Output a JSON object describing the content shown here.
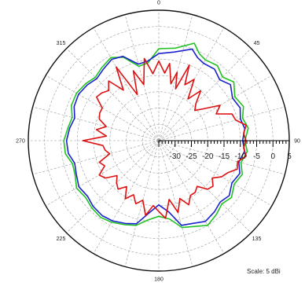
{
  "chart_data": {
    "type": "polar-line",
    "title": "",
    "angle_labels": [
      "0",
      "45",
      "90",
      "135",
      "180",
      "225",
      "270",
      "315"
    ],
    "radial_axis": {
      "range_dBi": [
        -35,
        5
      ],
      "gridline_step_dBi": 5,
      "tick_labels": [
        "-30",
        "-25",
        "-20",
        "-15",
        "-10",
        "-5",
        "0",
        "5"
      ]
    },
    "scale_label": "Scale: 5 dBi",
    "colors": {
      "background": "#ffffff",
      "grid": "#9a9a9a",
      "outer_ring": "#111111",
      "series_green": "#22c222",
      "series_blue": "#1a22cc",
      "series_red": "#dd1111"
    },
    "series": [
      {
        "color": "green",
        "points": [
          [
            0,
            -6.8
          ],
          [
            10,
            -6.2
          ],
          [
            20,
            -3.2
          ],
          [
            25,
            -5.6
          ],
          [
            30,
            -6.4
          ],
          [
            38,
            -5.8
          ],
          [
            45,
            -7.4
          ],
          [
            52,
            -5.8
          ],
          [
            60,
            -8.1
          ],
          [
            68,
            -7
          ],
          [
            75,
            -8.4
          ],
          [
            82,
            -7.3
          ],
          [
            90,
            -8.6
          ],
          [
            97,
            -7.7
          ],
          [
            105,
            -8.9
          ],
          [
            112,
            -7.4
          ],
          [
            120,
            -8.3
          ],
          [
            128,
            -6.7
          ],
          [
            135,
            -7.6
          ],
          [
            142,
            -6.3
          ],
          [
            150,
            -5
          ],
          [
            158,
            -6.6
          ],
          [
            165,
            -7.4
          ],
          [
            172,
            -10.7
          ],
          [
            180,
            -11.8
          ],
          [
            188,
            -10.4
          ],
          [
            195,
            -8.1
          ],
          [
            202,
            -7.2
          ],
          [
            210,
            -6.1
          ],
          [
            217,
            -5.5
          ],
          [
            225,
            -5.9
          ],
          [
            232,
            -6.6
          ],
          [
            240,
            -5.9
          ],
          [
            248,
            -7.3
          ],
          [
            255,
            -7.6
          ],
          [
            262,
            -6.1
          ],
          [
            270,
            -5.9
          ],
          [
            278,
            -6.9
          ],
          [
            285,
            -7.5
          ],
          [
            292,
            -6.1
          ],
          [
            300,
            -5.9
          ],
          [
            308,
            -6.6
          ],
          [
            315,
            -7.5
          ],
          [
            322,
            -6.6
          ],
          [
            330,
            -5.6
          ],
          [
            337,
            -7.2
          ],
          [
            345,
            -11.4
          ],
          [
            352,
            -10.9
          ],
          [
            360,
            -6.8
          ]
        ]
      },
      {
        "color": "blue",
        "points": [
          [
            0,
            -8.3
          ],
          [
            10,
            -7.4
          ],
          [
            20,
            -5.1
          ],
          [
            25,
            -6.9
          ],
          [
            30,
            -7.6
          ],
          [
            38,
            -7.2
          ],
          [
            45,
            -8.6
          ],
          [
            52,
            -7.1
          ],
          [
            60,
            -8.9
          ],
          [
            68,
            -8.1
          ],
          [
            75,
            -9.1
          ],
          [
            82,
            -8.4
          ],
          [
            90,
            -9.3
          ],
          [
            97,
            -8.5
          ],
          [
            105,
            -9.6
          ],
          [
            112,
            -8.2
          ],
          [
            120,
            -9.1
          ],
          [
            128,
            -7.6
          ],
          [
            135,
            -8.4
          ],
          [
            142,
            -7.3
          ],
          [
            150,
            -6.4
          ],
          [
            158,
            -7.6
          ],
          [
            165,
            -8.1
          ],
          [
            172,
            -12.9
          ],
          [
            180,
            -15.3
          ],
          [
            188,
            -12.5
          ],
          [
            195,
            -8.6
          ],
          [
            202,
            -7.6
          ],
          [
            210,
            -6.6
          ],
          [
            217,
            -6.2
          ],
          [
            225,
            -6.5
          ],
          [
            232,
            -7.3
          ],
          [
            240,
            -6.7
          ],
          [
            248,
            -7.7
          ],
          [
            255,
            -8.3
          ],
          [
            262,
            -7
          ],
          [
            270,
            -6.7
          ],
          [
            278,
            -7.4
          ],
          [
            285,
            -8.3
          ],
          [
            292,
            -7
          ],
          [
            300,
            -6.6
          ],
          [
            308,
            -7.2
          ],
          [
            315,
            -8.1
          ],
          [
            322,
            -7.3
          ],
          [
            330,
            -6.2
          ],
          [
            337,
            -6.9
          ],
          [
            345,
            -10.7
          ],
          [
            352,
            -10.4
          ],
          [
            360,
            -8.3
          ]
        ]
      },
      {
        "color": "red",
        "points": [
          [
            0,
            -10.6
          ],
          [
            5,
            -14.2
          ],
          [
            8,
            -11.1
          ],
          [
            12,
            -17.2
          ],
          [
            15,
            -13.3
          ],
          [
            18,
            -18.3
          ],
          [
            22,
            -10
          ],
          [
            25,
            -16.1
          ],
          [
            30,
            -13.3
          ],
          [
            35,
            -19.4
          ],
          [
            40,
            -15
          ],
          [
            45,
            -18.9
          ],
          [
            50,
            -20.6
          ],
          [
            55,
            -17.8
          ],
          [
            60,
            -13.3
          ],
          [
            65,
            -15.6
          ],
          [
            70,
            -11.1
          ],
          [
            75,
            -10.6
          ],
          [
            80,
            -7.8
          ],
          [
            85,
            -8.9
          ],
          [
            90,
            -8.3
          ],
          [
            95,
            -8.9
          ],
          [
            100,
            -7.8
          ],
          [
            105,
            -10
          ],
          [
            110,
            -9.4
          ],
          [
            115,
            -11.7
          ],
          [
            120,
            -12.8
          ],
          [
            125,
            -15
          ],
          [
            130,
            -13.3
          ],
          [
            135,
            -13.9
          ],
          [
            140,
            -16.7
          ],
          [
            145,
            -15.6
          ],
          [
            150,
            -15.6
          ],
          [
            155,
            -13.3
          ],
          [
            160,
            -16.1
          ],
          [
            165,
            -12.2
          ],
          [
            170,
            -16.7
          ],
          [
            175,
            -11.1
          ],
          [
            180,
            -13.3
          ],
          [
            185,
            -15
          ],
          [
            190,
            -11.7
          ],
          [
            195,
            -16.1
          ],
          [
            200,
            -14.4
          ],
          [
            205,
            -16.7
          ],
          [
            210,
            -14.4
          ],
          [
            215,
            -17.8
          ],
          [
            220,
            -15.6
          ],
          [
            225,
            -16.7
          ],
          [
            230,
            -18.3
          ],
          [
            235,
            -15
          ],
          [
            240,
            -13.9
          ],
          [
            245,
            -16.7
          ],
          [
            250,
            -15.6
          ],
          [
            255,
            -19.4
          ],
          [
            260,
            -18.3
          ],
          [
            265,
            -17.8
          ],
          [
            270,
            -11.7
          ],
          [
            275,
            -18.9
          ],
          [
            280,
            -15.6
          ],
          [
            285,
            -18.3
          ],
          [
            290,
            -15.6
          ],
          [
            295,
            -15
          ],
          [
            300,
            -15
          ],
          [
            305,
            -11.7
          ],
          [
            310,
            -12.2
          ],
          [
            315,
            -13.3
          ],
          [
            320,
            -11.1
          ],
          [
            325,
            -16.1
          ],
          [
            330,
            -8.9
          ],
          [
            335,
            -19.4
          ],
          [
            340,
            -12.2
          ],
          [
            345,
            -17.2
          ],
          [
            350,
            -9.4
          ],
          [
            355,
            -14.4
          ],
          [
            360,
            -10.6
          ]
        ]
      }
    ]
  }
}
